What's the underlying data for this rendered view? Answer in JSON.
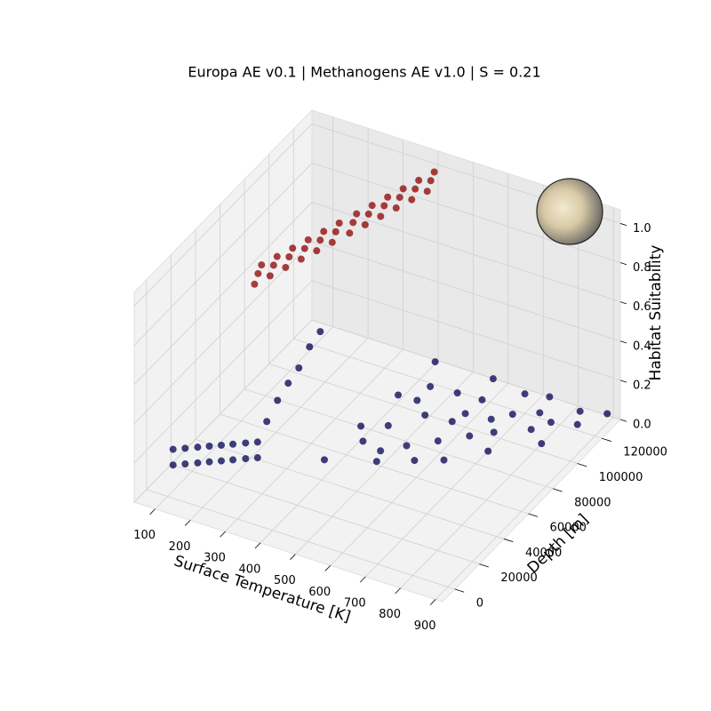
{
  "chart_data": {
    "type": "scatter3d",
    "title": "Europa AE v0.1 | Methanogens AE v1.0 | S = 0.21",
    "xlabel": "Surface Temperature [K]",
    "ylabel": "Depth [m]",
    "zlabel": "Habitat Suitability",
    "xlim": [
      40,
      920
    ],
    "ylim": [
      -10000,
      135000
    ],
    "zlim": [
      0,
      1.07
    ],
    "xticks": [
      100,
      200,
      300,
      400,
      500,
      600,
      700,
      800,
      900
    ],
    "yticks": [
      0,
      20000,
      40000,
      60000,
      80000,
      100000,
      120000
    ],
    "zticks": [
      {
        "value": 0,
        "label": "0.0"
      },
      0.2,
      0.4,
      0.6,
      0.8,
      {
        "value": 1,
        "label": "1.0"
      }
    ],
    "grid": true,
    "series": [
      {
        "color": "#000050",
        "x": [
          54,
          54,
          78,
          78,
          103,
          103,
          126,
          126,
          150,
          150,
          173,
          173,
          198,
          198,
          222,
          222,
          240,
          260,
          280,
          300,
          320,
          340,
          363,
          470,
          578,
          685,
          792,
          900,
          400,
          440,
          479,
          620,
          760,
          450,
          520,
          600,
          700,
          520,
          640,
          560,
          480,
          420,
          760,
          840,
          620,
          700,
          500,
          580,
          660,
          760,
          850,
          623,
          560,
          700,
          800,
          480
        ],
        "y": [
          17700,
          17700,
          20700,
          20700,
          23800,
          23800,
          26700,
          26700,
          29600,
          29600,
          32500,
          32500,
          35700,
          35700,
          38600,
          38600,
          41000,
          44000,
          47000,
          50000,
          53000,
          56000,
          52800,
          68000,
          84000,
          99000,
          115000,
          130000,
          72000,
          91000,
          110000,
          117000,
          123000,
          80000,
          90000,
          100000,
          110000,
          75000,
          92000,
          105000,
          95000,
          68000,
          115000,
          125000,
          108000,
          120000,
          100000,
          95000,
          104000,
          108000,
          120000,
          76000,
          70000,
          90000,
          105000,
          62000
        ],
        "z": [
          0.02,
          0.1,
          0.02,
          0.1,
          0.02,
          0.1,
          0.02,
          0.1,
          0.02,
          0.1,
          0.02,
          0.1,
          0.02,
          0.1,
          0.02,
          0.1,
          0.2,
          0.3,
          0.38,
          0.45,
          0.55,
          0.62,
          0,
          0.01,
          0.02,
          0.03,
          0.04,
          0.05,
          0.07,
          0.13,
          0.2,
          0.15,
          0.1,
          0.05,
          0.08,
          0.07,
          0.06,
          0.02,
          0.03,
          0.12,
          0.1,
          0.03,
          0.07,
          0.06,
          0.1,
          0.1,
          0.15,
          0.05,
          0.05,
          0.03,
          0.03,
          0,
          0,
          0,
          0,
          0
        ]
      },
      {
        "color": "#8b0000",
        "x": [
          205,
          215,
          225,
          221,
          231,
          241,
          237,
          247,
          257,
          253,
          263,
          273,
          269,
          279,
          289,
          285,
          295,
          305,
          303,
          313,
          323,
          319,
          329,
          339,
          335,
          345,
          355,
          351,
          361,
          371,
          367,
          377,
          387,
          383,
          393,
          403
        ],
        "y": [
          41000,
          41000,
          41000,
          49100,
          49100,
          49100,
          57200,
          57200,
          57200,
          65300,
          65300,
          65300,
          73400,
          73400,
          73400,
          81500,
          81500,
          81500,
          90500,
          90500,
          90500,
          98600,
          98600,
          98600,
          106700,
          106700,
          106700,
          114800,
          114800,
          114800,
          122900,
          122900,
          122900,
          131000,
          131000,
          131000
        ],
        "z": [
          0.88,
          0.94,
          0.99,
          0.88,
          0.94,
          0.99,
          0.88,
          0.94,
          0.99,
          0.88,
          0.94,
          0.99,
          0.88,
          0.94,
          0.99,
          0.88,
          0.94,
          0.99,
          0.88,
          0.94,
          0.99,
          0.88,
          0.94,
          0.99,
          0.88,
          0.94,
          0.99,
          0.88,
          0.94,
          0.99,
          0.88,
          0.94,
          0.99,
          0.88,
          0.94,
          0.99
        ]
      }
    ]
  }
}
